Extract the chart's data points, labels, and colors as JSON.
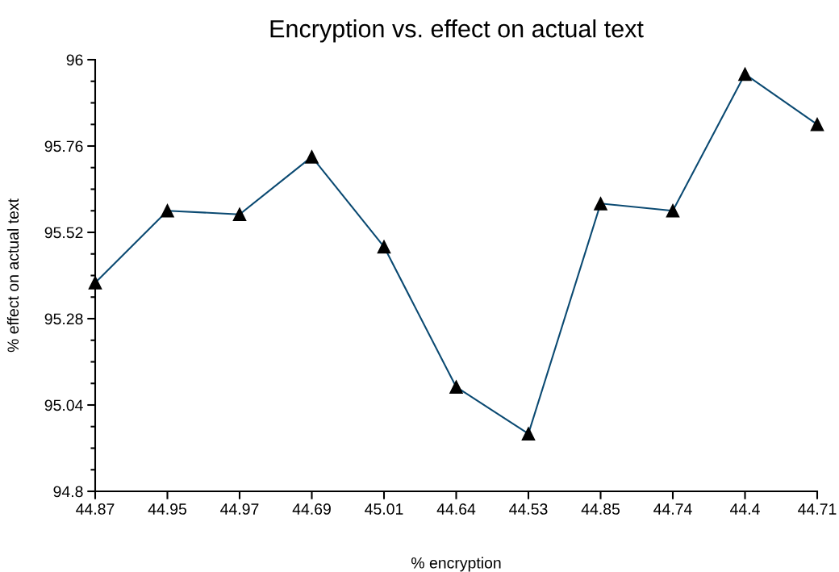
{
  "chart_data": {
    "type": "line",
    "title": "Encryption vs. effect on actual text",
    "xlabel": "% encryption",
    "ylabel": "% effect on actual text",
    "categories": [
      "44.87",
      "44.95",
      "44.97",
      "44.69",
      "45.01",
      "44.64",
      "44.53",
      "44.85",
      "44.74",
      "44.4",
      "44.71"
    ],
    "series": [
      {
        "color": "#0b4a72",
        "values": [
          95.38,
          95.58,
          95.57,
          95.73,
          95.48,
          95.09,
          94.96,
          95.6,
          95.58,
          95.96,
          95.82
        ]
      }
    ],
    "ylim": [
      94.8,
      96
    ],
    "yticks": [
      94.8,
      95.04,
      95.28,
      95.52,
      95.76,
      96
    ],
    "marker": "triangle",
    "grid": false,
    "legend": false
  }
}
